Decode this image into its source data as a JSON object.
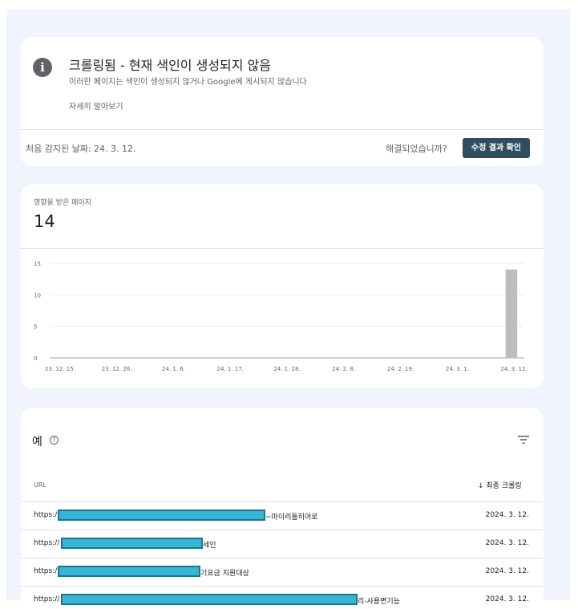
{
  "issue": {
    "title": "크롤링됨 - 현재 색인이 생성되지 않음",
    "description": "이러한 페이지는 색인이 생성되지 않거나 Google에 게시되지 않습니다",
    "learn_more": "자세히 알아보기",
    "first_detected": "처음 감지된 날짜: 24. 3. 12.",
    "resolved_question": "해결되었습니까?",
    "validate_button": "수정 결과 확인",
    "info_glyph": "i"
  },
  "affected": {
    "label": "영향을 받은 페이지",
    "value": "14"
  },
  "chart_data": {
    "type": "bar",
    "x_tick_labels": [
      "23. 12. 15.",
      "23. 12. 26.",
      "24. 1. 6.",
      "24. 1. 17.",
      "24. 1. 28.",
      "24. 2. 8.",
      "24. 2. 19.",
      "24. 3. 1.",
      "24. 3. 12."
    ],
    "y_ticks": [
      0,
      5,
      10,
      15
    ],
    "ylim": [
      0,
      15
    ],
    "x_range": [
      "23. 12. 13.",
      "24. 3. 14."
    ],
    "series": [
      {
        "x": [
          "23. 12. 13.",
          "24. 3. 11.",
          "24. 3. 12."
        ],
        "values": [
          0,
          14,
          14
        ]
      }
    ],
    "bar_color": "#bdbdbd",
    "grid": true
  },
  "examples": {
    "title": "예",
    "help_glyph": "?",
    "filter_icon": "filter-icon",
    "col_url": "URL",
    "col_last_crawl": "↓ 최종 크롤링",
    "rows": [
      {
        "url_prefix": "https:/",
        "url_suffix": "~마이리틀히어로",
        "date": "2024. 3. 12."
      },
      {
        "url_prefix": "https://",
        "url_suffix": "세인",
        "date": "2024. 3. 12."
      },
      {
        "url_prefix": "https:/",
        "url_suffix": "기요금 지원대상",
        "date": "2024. 3. 12."
      },
      {
        "url_prefix": "https://",
        "url_suffix": "리-사용변기능",
        "date": "2024. 3. 12."
      }
    ]
  }
}
